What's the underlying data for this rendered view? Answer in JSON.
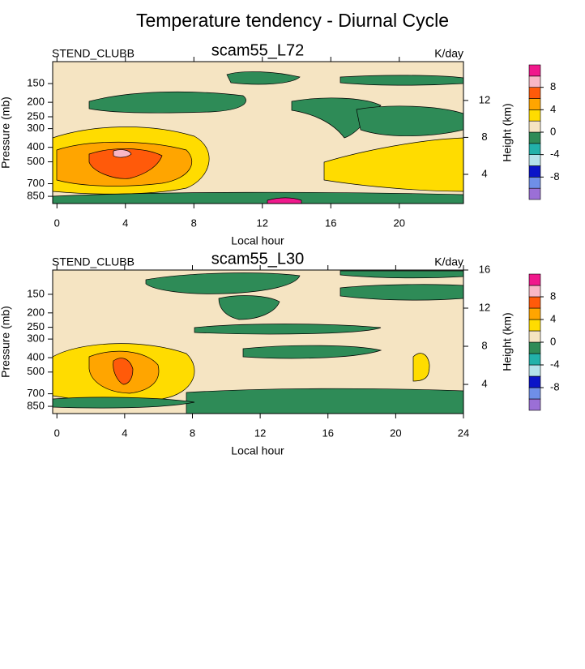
{
  "title": "Temperature tendency - Diurnal Cycle",
  "chart_data": [
    {
      "type": "contour",
      "title": "scam55_L72",
      "left_string": "STEND_CLUBB",
      "right_string": "K/day",
      "xlabel": "Local hour",
      "ylabel": "Pressure (mb)",
      "y2label": "Height (km)",
      "xlim": [
        -0.25,
        23.75
      ],
      "xticks": [
        0,
        4,
        8,
        12,
        16,
        20
      ],
      "ylim": [
        950,
        107
      ],
      "yscale": "log",
      "yticks": [
        150,
        200,
        250,
        300,
        400,
        500,
        700,
        850
      ],
      "y2lim": [
        0.84,
        16.2
      ],
      "y2ticks": [
        4,
        8,
        12
      ],
      "colorbar": {
        "range": [
          -12,
          12
        ],
        "ticks": [
          -8,
          -4,
          0,
          4,
          8
        ],
        "colors": [
          "#9b6fd6",
          "#6f8fe8",
          "#0a14c8",
          "#b3e1ea",
          "#22b1aa",
          "#2e8b57",
          "#f5e4c2",
          "#ffdc00",
          "#ffa500",
          "#ff5a0a",
          "#f9b7c6",
          "#f0198c"
        ]
      }
    },
    {
      "type": "contour",
      "title": "scam55_L30",
      "left_string": "STEND_CLUBB",
      "right_string": "K/day",
      "xlabel": "Local hour",
      "ylabel": "Pressure (mb)",
      "y2label": "Height (km)",
      "xlim": [
        -0.25,
        24
      ],
      "xticks": [
        0,
        4,
        8,
        12,
        16,
        20,
        24
      ],
      "ylim": [
        951,
        103
      ],
      "yscale": "log",
      "yticks": [
        150,
        200,
        250,
        300,
        400,
        500,
        700,
        850
      ],
      "y2lim": [
        0.94,
        16
      ],
      "y2ticks": [
        4,
        8,
        12,
        16
      ],
      "colorbar": {
        "range": [
          -12,
          12
        ],
        "ticks": [
          -8,
          -4,
          0,
          4,
          8
        ],
        "colors": [
          "#9b6fd6",
          "#6f8fe8",
          "#0a14c8",
          "#b3e1ea",
          "#22b1aa",
          "#2e8b57",
          "#f5e4c2",
          "#ffdc00",
          "#ffa500",
          "#ff5a0a",
          "#f9b7c6",
          "#f0198c"
        ]
      }
    }
  ]
}
